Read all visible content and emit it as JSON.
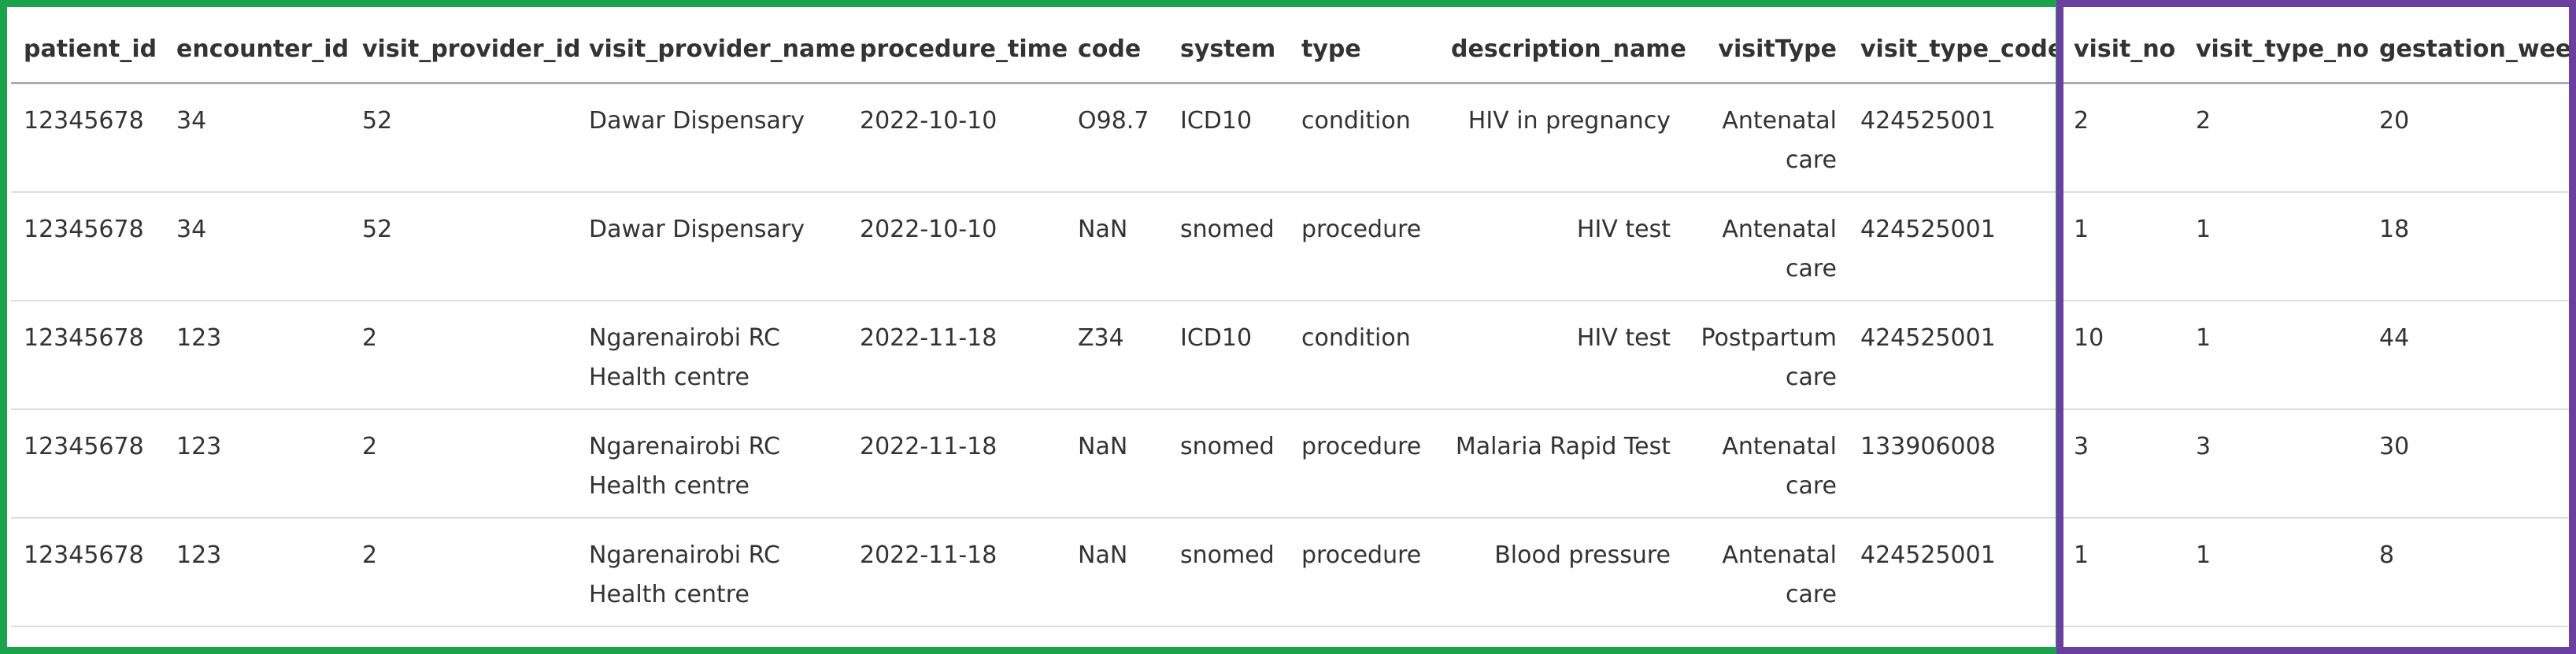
{
  "table": {
    "columns": [
      "patient_id",
      "encounter_id",
      "visit_provider_id",
      "visit_provider_name",
      "procedure_time",
      "code",
      "system",
      "type",
      "description_name",
      "visitType",
      "visit_type_code",
      "visit_no",
      "visit_type_no",
      "gestation_week"
    ],
    "rows": [
      [
        "12345678",
        "34",
        "52",
        "Dawar Dispensary",
        "2022-10-10",
        "O98.7",
        "ICD10",
        "condition",
        "HIV in pregnancy",
        "Antenatal care",
        "424525001",
        "2",
        "2",
        "20"
      ],
      [
        "12345678",
        "34",
        "52",
        "Dawar Dispensary",
        "2022-10-10",
        "NaN",
        "snomed",
        "procedure",
        "HIV test",
        "Antenatal care",
        "424525001",
        "1",
        "1",
        "18"
      ],
      [
        "12345678",
        "123",
        "2",
        "Ngarenairobi RC Health centre",
        "2022-11-18",
        "Z34",
        "ICD10",
        "condition",
        "HIV test",
        "Postpartum care",
        "424525001",
        "10",
        "1",
        "44"
      ],
      [
        "12345678",
        "123",
        "2",
        "Ngarenairobi RC Health centre",
        "2022-11-18",
        "NaN",
        "snomed",
        "procedure",
        "Malaria Rapid Test",
        "Antenatal care",
        "133906008",
        "3",
        "3",
        "30"
      ],
      [
        "12345678",
        "123",
        "2",
        "Ngarenairobi RC Health centre",
        "2022-11-18",
        "NaN",
        "snomed",
        "procedure",
        "Blood pressure",
        "Antenatal care",
        "424525001",
        "1",
        "1",
        "8"
      ]
    ]
  }
}
